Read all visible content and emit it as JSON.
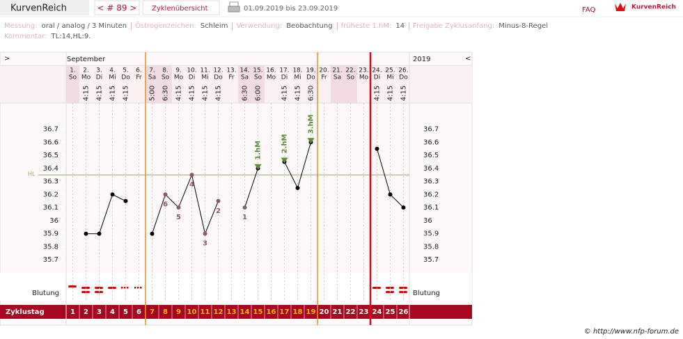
{
  "header": {
    "app_tab": "KurvenReich",
    "cycle_nav": "< # 89 >",
    "overview_tab": "Zyklenübersicht",
    "date_range": "01.09.2019 bis 23.09.2019",
    "faq": "FAQ",
    "logo_text": "KurvenReich"
  },
  "info": {
    "fields": [
      {
        "label": "Messung:",
        "value": "oral / analog / 3 Minuten"
      },
      {
        "label": "Östrogenzeichen:",
        "value": "Schleim"
      },
      {
        "label": "Verwendung:",
        "value": "Beobachtung"
      },
      {
        "label": "früheste 1.hM:",
        "value": 14
      },
      {
        "label": "Freigabe Zyklusanfang:",
        "value": "Minus-8-Regel"
      }
    ],
    "comment": {
      "label": "Kommentar:",
      "value": "TL:14,HL:9."
    }
  },
  "chart_data": {
    "type": "line",
    "nav_left": ">",
    "nav_right": "<",
    "month": "September",
    "year": "2019",
    "categories": [
      "1.",
      "2.",
      "3.",
      "4.",
      "5.",
      "6.",
      "7.",
      "8.",
      "9.",
      "10.",
      "11.",
      "12.",
      "13.",
      "14.",
      "15.",
      "16.",
      "17.",
      "18.",
      "19.",
      "20.",
      "21.",
      "22.",
      "23.",
      "24.",
      "25.",
      "26."
    ],
    "weekdays": [
      "So",
      "Mo",
      "Di",
      "Mi",
      "Do",
      "Fr",
      "Sa",
      "So",
      "Mo",
      "Di",
      "Mi",
      "Do",
      "Fr",
      "Sa",
      "So",
      "Mo",
      "Di",
      "Mi",
      "Do",
      "Fr",
      "Sa",
      "So",
      "Mo",
      "Di",
      "Mi",
      "Do"
    ],
    "times": [
      null,
      "4:15",
      "4:15",
      "4:15",
      "4:15",
      null,
      "5:00",
      "6:30",
      "4:15",
      "4:15",
      "4:15",
      "4:15",
      null,
      "6:30",
      "6:00",
      null,
      "4:15",
      "4:15",
      "6:30",
      null,
      null,
      null,
      null,
      "4:15",
      "4:15",
      "4:15"
    ],
    "series": [
      {
        "color": "#000000",
        "values": [
          null,
          35.9,
          35.9,
          36.2,
          36.15,
          null,
          35.9,
          36.2,
          36.1,
          36.35,
          35.9,
          36.15,
          null,
          36.1,
          36.4,
          null,
          36.45,
          36.25,
          36.6,
          null,
          null,
          null,
          null,
          36.55,
          36.2,
          36.1
        ]
      }
    ],
    "ylim": [
      35.6,
      36.9
    ],
    "yticks": [
      35.7,
      35.8,
      35.9,
      36,
      36.1,
      36.2,
      36.3,
      36.4,
      36.5,
      36.6,
      36.7
    ],
    "reference_line": {
      "label": "HL",
      "value": 36.35,
      "color": "#8fa86a"
    },
    "annotations": [
      {
        "text": "1.hM",
        "category": "15."
      },
      {
        "text": "2.hM",
        "category": "17."
      },
      {
        "text": "3.hM",
        "category": "19."
      }
    ],
    "low_labels": [
      {
        "text": 6,
        "category": "8."
      },
      {
        "text": 5,
        "category": "9."
      },
      {
        "text": 4,
        "category": "10."
      },
      {
        "text": 3,
        "category": "11."
      },
      {
        "text": 2,
        "category": "12."
      },
      {
        "text": 1,
        "category": "14."
      }
    ],
    "bleeding_label": "Blutung",
    "cycle_day_label": "Zyklustag",
    "cycle_days": [
      1,
      2,
      3,
      4,
      5,
      6,
      7,
      8,
      9,
      10,
      11,
      12,
      13,
      14,
      15,
      16,
      17,
      18,
      19,
      20,
      21,
      22,
      23,
      24,
      25,
      26
    ]
  },
  "footer": "© http://www.nfp-forum.de"
}
